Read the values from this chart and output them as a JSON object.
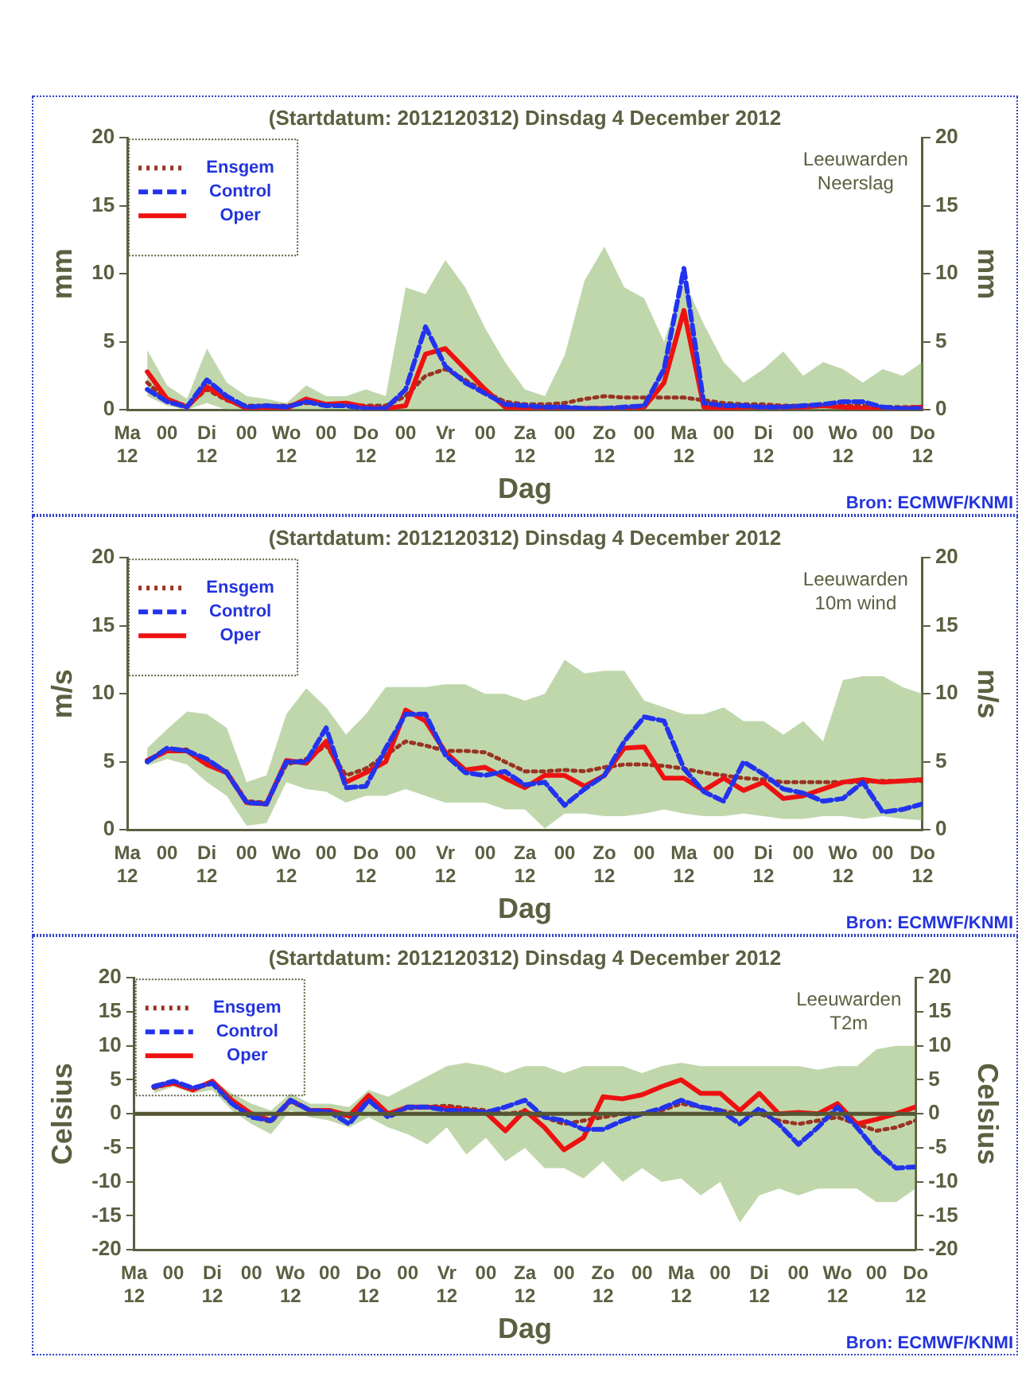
{
  "chart_data": [
    {
      "type": "line",
      "title": "(Startdatum: 2012120312) Dinsdag 4 December 2012",
      "xlabel": "Dag",
      "ylabel": "mm",
      "y2label": "mm",
      "annotations": [
        "Leeuwarden",
        "Neerslag",
        "Bron: ECMWF/KNMI"
      ],
      "legend": "top left",
      "xlim": [
        "2012-12-03T12:00",
        "2012-12-13T12:00"
      ],
      "xticks": [
        {
          "value": "2012-12-03T12:00",
          "label": "Ma 12"
        },
        {
          "value": "2012-12-04T00:00",
          "label": "00"
        },
        {
          "value": "2012-12-04T12:00",
          "label": "Di 12"
        },
        {
          "value": "2012-12-05T00:00",
          "label": "00"
        },
        {
          "value": "2012-12-05T12:00",
          "label": "Wo 12"
        },
        {
          "value": "2012-12-06T00:00",
          "label": "00"
        },
        {
          "value": "2012-12-06T12:00",
          "label": "Do 12"
        },
        {
          "value": "2012-12-07T00:00",
          "label": "00"
        },
        {
          "value": "2012-12-07T12:00",
          "label": "Vr 12"
        },
        {
          "value": "2012-12-08T00:00",
          "label": "00"
        },
        {
          "value": "2012-12-08T12:00",
          "label": "Za 12"
        },
        {
          "value": "2012-12-09T00:00",
          "label": "00"
        },
        {
          "value": "2012-12-09T12:00",
          "label": "Zo 12"
        },
        {
          "value": "2012-12-10T00:00",
          "label": "00"
        },
        {
          "value": "2012-12-10T12:00",
          "label": "Ma 12"
        },
        {
          "value": "2012-12-11T00:00",
          "label": "00"
        },
        {
          "value": "2012-12-11T12:00",
          "label": "Di 12"
        },
        {
          "value": "2012-12-12T00:00",
          "label": "00"
        },
        {
          "value": "2012-12-12T12:00",
          "label": "Wo 12"
        },
        {
          "value": "2012-12-13T00:00",
          "label": "00"
        },
        {
          "value": "2012-12-13T12:00",
          "label": "Do 12"
        }
      ],
      "ylim": [
        0,
        20
      ],
      "yticks": [
        0,
        5,
        10,
        15,
        20
      ],
      "y2lim": [
        0,
        20
      ],
      "y2ticks": [
        0,
        5,
        10,
        15,
        20
      ],
      "x": [
        "2012-12-03T18:00",
        "2012-12-04T00:00",
        "2012-12-04T06:00",
        "2012-12-04T12:00",
        "2012-12-04T18:00",
        "2012-12-05T00:00",
        "2012-12-05T06:00",
        "2012-12-05T12:00",
        "2012-12-05T18:00",
        "2012-12-06T00:00",
        "2012-12-06T06:00",
        "2012-12-06T12:00",
        "2012-12-06T18:00",
        "2012-12-07T00:00",
        "2012-12-07T06:00",
        "2012-12-07T12:00",
        "2012-12-07T18:00",
        "2012-12-08T00:00",
        "2012-12-08T06:00",
        "2012-12-08T12:00",
        "2012-12-08T18:00",
        "2012-12-09T00:00",
        "2012-12-09T06:00",
        "2012-12-09T12:00",
        "2012-12-09T18:00",
        "2012-12-10T00:00",
        "2012-12-10T06:00",
        "2012-12-10T12:00",
        "2012-12-10T18:00",
        "2012-12-11T00:00",
        "2012-12-11T06:00",
        "2012-12-11T12:00",
        "2012-12-11T18:00",
        "2012-12-12T00:00",
        "2012-12-12T06:00",
        "2012-12-12T12:00",
        "2012-12-12T18:00",
        "2012-12-13T00:00",
        "2012-12-13T06:00",
        "2012-12-13T12:00"
      ],
      "series": [
        {
          "name": "Ensgem",
          "color": "#993322",
          "line_style": "dotted",
          "values": [
            2,
            0.7,
            0.3,
            1.5,
            0.7,
            0.3,
            0.3,
            0.3,
            0.5,
            0.4,
            0.4,
            0.3,
            0.3,
            1,
            2.5,
            3,
            2.2,
            1.3,
            0.6,
            0.4,
            0.4,
            0.5,
            0.8,
            1,
            0.9,
            0.9,
            0.9,
            0.9,
            0.7,
            0.5,
            0.4,
            0.4,
            0.3,
            0.3,
            0.3,
            0.3,
            0.3,
            0.2,
            0.2,
            0.2
          ],
          "lower": [
            1,
            0.3,
            0,
            0.5,
            0,
            0,
            0,
            0,
            0,
            0,
            0,
            0,
            0,
            0,
            0,
            0,
            0,
            0,
            0,
            0,
            0,
            0,
            0,
            0,
            0,
            0,
            0,
            0,
            0,
            0,
            0,
            0,
            0,
            0,
            0,
            0,
            0,
            0,
            0,
            0
          ],
          "upper": [
            4.4,
            1.8,
            0.8,
            4.5,
            2,
            1,
            0.8,
            0.5,
            1.8,
            1,
            1,
            1.5,
            1,
            9,
            8.5,
            11,
            9,
            6,
            3.5,
            1.5,
            1,
            4,
            9.5,
            12,
            9,
            8.2,
            5,
            9.5,
            6.3,
            3.5,
            2,
            3,
            4.3,
            2.5,
            3.5,
            3,
            2,
            3,
            2.5,
            3.5
          ]
        },
        {
          "name": "Control",
          "color": "#2233ee",
          "line_style": "dashed",
          "values": [
            1.5,
            0.6,
            0.2,
            2.2,
            1,
            0.2,
            0.3,
            0.2,
            0.6,
            0.3,
            0.3,
            0.1,
            0.1,
            1.5,
            6.1,
            3.2,
            2,
            1.2,
            0.4,
            0.3,
            0.2,
            0.2,
            0.1,
            0.1,
            0.2,
            0.3,
            3,
            10.4,
            0.5,
            0.3,
            0.3,
            0.2,
            0.2,
            0.3,
            0.4,
            0.6,
            0.6,
            0.2,
            0.1,
            0.1
          ]
        },
        {
          "name": "Oper",
          "color": "#ee1111",
          "line_style": "solid",
          "values": [
            2.8,
            0.8,
            0.2,
            1.7,
            0.8,
            0.1,
            0.2,
            0.1,
            0.8,
            0.4,
            0.5,
            0.2,
            0.1,
            0.3,
            4.1,
            4.5,
            3,
            1.5,
            0.2,
            0.1,
            0.1,
            0.1,
            0.1,
            0.1,
            0.1,
            0.2,
            2,
            7.3,
            0.2,
            0.1,
            0.2,
            0.2,
            0.2,
            0.2,
            0.3,
            0.2,
            0.1,
            0.1,
            0.1,
            0.2
          ]
        }
      ]
    },
    {
      "type": "line",
      "title": "(Startdatum: 2012120312) Dinsdag 4 December 2012",
      "xlabel": "Dag",
      "ylabel": "m/s",
      "y2label": "m/s",
      "annotations": [
        "Leeuwarden",
        "10m wind",
        "Bron: ECMWF/KNMI"
      ],
      "legend": "top left",
      "xlim": [
        "2012-12-03T12:00",
        "2012-12-13T12:00"
      ],
      "xticks": [
        {
          "value": "2012-12-03T12:00",
          "label": "Ma 12"
        },
        {
          "value": "2012-12-04T00:00",
          "label": "00"
        },
        {
          "value": "2012-12-04T12:00",
          "label": "Di 12"
        },
        {
          "value": "2012-12-05T00:00",
          "label": "00"
        },
        {
          "value": "2012-12-05T12:00",
          "label": "Wo 12"
        },
        {
          "value": "2012-12-06T00:00",
          "label": "00"
        },
        {
          "value": "2012-12-06T12:00",
          "label": "Do 12"
        },
        {
          "value": "2012-12-07T00:00",
          "label": "00"
        },
        {
          "value": "2012-12-07T12:00",
          "label": "Vr 12"
        },
        {
          "value": "2012-12-08T00:00",
          "label": "00"
        },
        {
          "value": "2012-12-08T12:00",
          "label": "Za 12"
        },
        {
          "value": "2012-12-09T00:00",
          "label": "00"
        },
        {
          "value": "2012-12-09T12:00",
          "label": "Zo 12"
        },
        {
          "value": "2012-12-10T00:00",
          "label": "00"
        },
        {
          "value": "2012-12-10T12:00",
          "label": "Ma 12"
        },
        {
          "value": "2012-12-11T00:00",
          "label": "00"
        },
        {
          "value": "2012-12-11T12:00",
          "label": "Di 12"
        },
        {
          "value": "2012-12-12T00:00",
          "label": "00"
        },
        {
          "value": "2012-12-12T12:00",
          "label": "Wo 12"
        },
        {
          "value": "2012-12-13T00:00",
          "label": "00"
        },
        {
          "value": "2012-12-13T12:00",
          "label": "Do 12"
        }
      ],
      "ylim": [
        0,
        20
      ],
      "yticks": [
        0,
        5,
        10,
        15,
        20
      ],
      "y2lim": [
        0,
        20
      ],
      "y2ticks": [
        0,
        5,
        10,
        15,
        20
      ],
      "x": [
        "2012-12-03T18:00",
        "2012-12-04T00:00",
        "2012-12-04T06:00",
        "2012-12-04T12:00",
        "2012-12-04T18:00",
        "2012-12-05T00:00",
        "2012-12-05T06:00",
        "2012-12-05T12:00",
        "2012-12-05T18:00",
        "2012-12-06T00:00",
        "2012-12-06T06:00",
        "2012-12-06T12:00",
        "2012-12-06T18:00",
        "2012-12-07T00:00",
        "2012-12-07T06:00",
        "2012-12-07T12:00",
        "2012-12-07T18:00",
        "2012-12-08T00:00",
        "2012-12-08T06:00",
        "2012-12-08T12:00",
        "2012-12-08T18:00",
        "2012-12-09T00:00",
        "2012-12-09T06:00",
        "2012-12-09T12:00",
        "2012-12-09T18:00",
        "2012-12-10T00:00",
        "2012-12-10T06:00",
        "2012-12-10T12:00",
        "2012-12-10T18:00",
        "2012-12-11T00:00",
        "2012-12-11T06:00",
        "2012-12-11T12:00",
        "2012-12-11T18:00",
        "2012-12-12T00:00",
        "2012-12-12T06:00",
        "2012-12-12T12:00",
        "2012-12-12T18:00",
        "2012-12-13T00:00",
        "2012-12-13T06:00",
        "2012-12-13T12:00"
      ],
      "series": [
        {
          "name": "Ensgem",
          "color": "#993322",
          "line_style": "dotted",
          "values": [
            5.1,
            5.9,
            5.9,
            5,
            4.3,
            2.1,
            2,
            4.8,
            5.2,
            6.2,
            4,
            4.5,
            5.5,
            6.5,
            6.2,
            5.8,
            5.8,
            5.7,
            5,
            4.3,
            4.3,
            4.4,
            4.3,
            4.6,
            4.8,
            4.8,
            4.7,
            4.5,
            4.2,
            4,
            3.8,
            3.7,
            3.5,
            3.5,
            3.5,
            3.5,
            3.5,
            3.6,
            3.6,
            3.6
          ],
          "lower": [
            4.7,
            5.2,
            4.8,
            3.5,
            2.5,
            0.3,
            0.5,
            3.5,
            3,
            2.8,
            2,
            2.5,
            2.5,
            3,
            2.5,
            2,
            2,
            2,
            1.5,
            1.5,
            0.1,
            1.2,
            1.2,
            1,
            1,
            1.2,
            1.5,
            1.2,
            1,
            1,
            1.2,
            1,
            0.8,
            0.8,
            1,
            1,
            0.8,
            1,
            0.8,
            0.7
          ],
          "upper": [
            6,
            7.4,
            8.7,
            8.5,
            7.5,
            3.5,
            4,
            8.5,
            10.4,
            9,
            7,
            8.5,
            10.5,
            10.5,
            10.5,
            10.7,
            10.7,
            10,
            10,
            9.5,
            10,
            12.5,
            11.5,
            11.7,
            11.7,
            9.5,
            9,
            8.5,
            8.5,
            9,
            8,
            8,
            7,
            8,
            6.5,
            11,
            11.3,
            11.3,
            10.5,
            10
          ]
        },
        {
          "name": "Control",
          "color": "#2233ee",
          "line_style": "dashed",
          "values": [
            5,
            6,
            5.8,
            5.2,
            4.2,
            2,
            1.9,
            5,
            5,
            7.5,
            3.1,
            3.2,
            6,
            8.5,
            8.5,
            5.5,
            4.2,
            4,
            4.3,
            3.3,
            3.5,
            1.8,
            3,
            4,
            6.5,
            8.3,
            8,
            4.5,
            2.8,
            2.1,
            5,
            4.1,
            3,
            2.7,
            2.1,
            2.3,
            3.5,
            1.3,
            1.5,
            1.9
          ]
        },
        {
          "name": "Oper",
          "color": "#ee1111",
          "line_style": "solid",
          "values": [
            5.1,
            5.8,
            5.8,
            4.8,
            4.2,
            2,
            1.9,
            5.1,
            4.9,
            6.5,
            3.5,
            4.2,
            5,
            8.8,
            8,
            5.7,
            4.4,
            4.6,
            3.8,
            3.1,
            4,
            4,
            3.2,
            4,
            6,
            6.1,
            3.8,
            3.8,
            2.9,
            3.8,
            2.9,
            3.5,
            2.3,
            2.5,
            3,
            3.5,
            3.7,
            3.5,
            3.6,
            3.7
          ]
        }
      ]
    },
    {
      "type": "line",
      "title": "(Startdatum: 2012120312) Dinsdag 4 December 2012",
      "xlabel": "Dag",
      "ylabel": "Celsius",
      "y2label": "Celsius",
      "annotations": [
        "Leeuwarden",
        "T2m",
        "Bron: ECMWF/KNMI"
      ],
      "legend": "top left",
      "xlim": [
        "2012-12-03T12:00",
        "2012-12-13T12:00"
      ],
      "xticks": [
        {
          "value": "2012-12-03T12:00",
          "label": "Ma 12"
        },
        {
          "value": "2012-12-04T00:00",
          "label": "00"
        },
        {
          "value": "2012-12-04T12:00",
          "label": "Di 12"
        },
        {
          "value": "2012-12-05T00:00",
          "label": "00"
        },
        {
          "value": "2012-12-05T12:00",
          "label": "Wo 12"
        },
        {
          "value": "2012-12-06T00:00",
          "label": "00"
        },
        {
          "value": "2012-12-06T12:00",
          "label": "Do 12"
        },
        {
          "value": "2012-12-07T00:00",
          "label": "00"
        },
        {
          "value": "2012-12-07T12:00",
          "label": "Vr 12"
        },
        {
          "value": "2012-12-08T00:00",
          "label": "00"
        },
        {
          "value": "2012-12-08T12:00",
          "label": "Za 12"
        },
        {
          "value": "2012-12-09T00:00",
          "label": "00"
        },
        {
          "value": "2012-12-09T12:00",
          "label": "Zo 12"
        },
        {
          "value": "2012-12-10T00:00",
          "label": "00"
        },
        {
          "value": "2012-12-10T12:00",
          "label": "Ma 12"
        },
        {
          "value": "2012-12-11T00:00",
          "label": "00"
        },
        {
          "value": "2012-12-11T12:00",
          "label": "Di 12"
        },
        {
          "value": "2012-12-12T00:00",
          "label": "00"
        },
        {
          "value": "2012-12-12T12:00",
          "label": "Wo 12"
        },
        {
          "value": "2012-12-13T00:00",
          "label": "00"
        },
        {
          "value": "2012-12-13T12:00",
          "label": "Do 12"
        }
      ],
      "ylim": [
        -20,
        20
      ],
      "yticks": [
        -20,
        -15,
        -10,
        -5,
        0,
        5,
        10,
        15,
        20
      ],
      "y2lim": [
        -20,
        20
      ],
      "y2ticks": [
        -20,
        -15,
        -10,
        -5,
        0,
        5,
        10,
        15,
        20
      ],
      "ref_lines": [
        {
          "axis": "y",
          "value": 0,
          "color": "#555533"
        }
      ],
      "x": [
        "2012-12-03T18:00",
        "2012-12-04T00:00",
        "2012-12-04T06:00",
        "2012-12-04T12:00",
        "2012-12-04T18:00",
        "2012-12-05T00:00",
        "2012-12-05T06:00",
        "2012-12-05T12:00",
        "2012-12-05T18:00",
        "2012-12-06T00:00",
        "2012-12-06T06:00",
        "2012-12-06T12:00",
        "2012-12-06T18:00",
        "2012-12-07T00:00",
        "2012-12-07T06:00",
        "2012-12-07T12:00",
        "2012-12-07T18:00",
        "2012-12-08T00:00",
        "2012-12-08T06:00",
        "2012-12-08T12:00",
        "2012-12-08T18:00",
        "2012-12-09T00:00",
        "2012-12-09T06:00",
        "2012-12-09T12:00",
        "2012-12-09T18:00",
        "2012-12-10T00:00",
        "2012-12-10T06:00",
        "2012-12-10T12:00",
        "2012-12-10T18:00",
        "2012-12-11T00:00",
        "2012-12-11T06:00",
        "2012-12-11T12:00",
        "2012-12-11T18:00",
        "2012-12-12T00:00",
        "2012-12-12T06:00",
        "2012-12-12T12:00",
        "2012-12-12T18:00",
        "2012-12-13T00:00",
        "2012-12-13T06:00",
        "2012-12-13T12:00"
      ],
      "series": [
        {
          "name": "Ensgem",
          "color": "#993322",
          "line_style": "dotted",
          "values": [
            3.8,
            4.5,
            3.7,
            4.5,
            1.5,
            -0.3,
            -1.2,
            1.8,
            0.5,
            0.5,
            -0.5,
            2,
            0,
            0.8,
            1,
            1.2,
            0.8,
            0.5,
            0,
            0.3,
            -0.5,
            -1.5,
            -1,
            -0.5,
            0,
            0,
            0.5,
            1.5,
            1,
            0.5,
            0,
            0,
            -1,
            -1.5,
            -1,
            -0.5,
            -1.5,
            -2.5,
            -2,
            -1
          ],
          "lower": [
            3,
            4,
            3,
            3.5,
            0.5,
            -1.5,
            -3,
            0.5,
            -0.5,
            -1,
            -2,
            -0.5,
            -2,
            -3,
            -4.5,
            -2,
            -6,
            -3.5,
            -7,
            -5,
            -8,
            -8,
            -9.5,
            -7,
            -10,
            -8,
            -10,
            -9.5,
            -12,
            -10,
            -16,
            -12,
            -11,
            -12,
            -11,
            -11,
            -11,
            -13,
            -13,
            -11
          ],
          "upper": [
            4.5,
            5,
            4,
            5,
            3,
            1.5,
            0.5,
            3,
            1.5,
            1.5,
            1,
            3.5,
            2.5,
            4,
            5.5,
            7,
            7.5,
            7,
            6,
            7,
            7,
            6,
            7,
            7,
            7,
            6,
            7,
            7.5,
            7,
            7,
            7,
            7,
            7,
            7,
            6.5,
            7,
            7,
            9.5,
            10,
            10
          ]
        },
        {
          "name": "Control",
          "color": "#2233ee",
          "line_style": "dashed",
          "values": [
            4,
            4.8,
            3.8,
            4.5,
            1.5,
            -0.5,
            -1,
            2,
            0.5,
            0.3,
            -1.5,
            2,
            -0.5,
            1,
            1,
            0.5,
            0.5,
            0.2,
            1,
            2,
            -0.5,
            -1,
            -2.3,
            -2.3,
            -1,
            0,
            0.8,
            2,
            1,
            0.5,
            -1.5,
            0.8,
            -1.5,
            -4.5,
            -2,
            1,
            -2,
            -5.5,
            -8,
            -7.8
          ]
        },
        {
          "name": "Oper",
          "color": "#ee1111",
          "line_style": "solid",
          "values": [
            4,
            4.5,
            3.5,
            4.8,
            2,
            0,
            -1,
            2,
            0.5,
            0.5,
            -0.3,
            2.7,
            0,
            1,
            1,
            0.8,
            0.5,
            0.2,
            -2.5,
            0.5,
            -2,
            -5.3,
            -3.5,
            2.5,
            2.2,
            2.8,
            4,
            5,
            3,
            3,
            0.5,
            3,
            0,
            0.2,
            0,
            1.5,
            -1.5,
            -0.8,
            0,
            1
          ]
        }
      ]
    }
  ]
}
